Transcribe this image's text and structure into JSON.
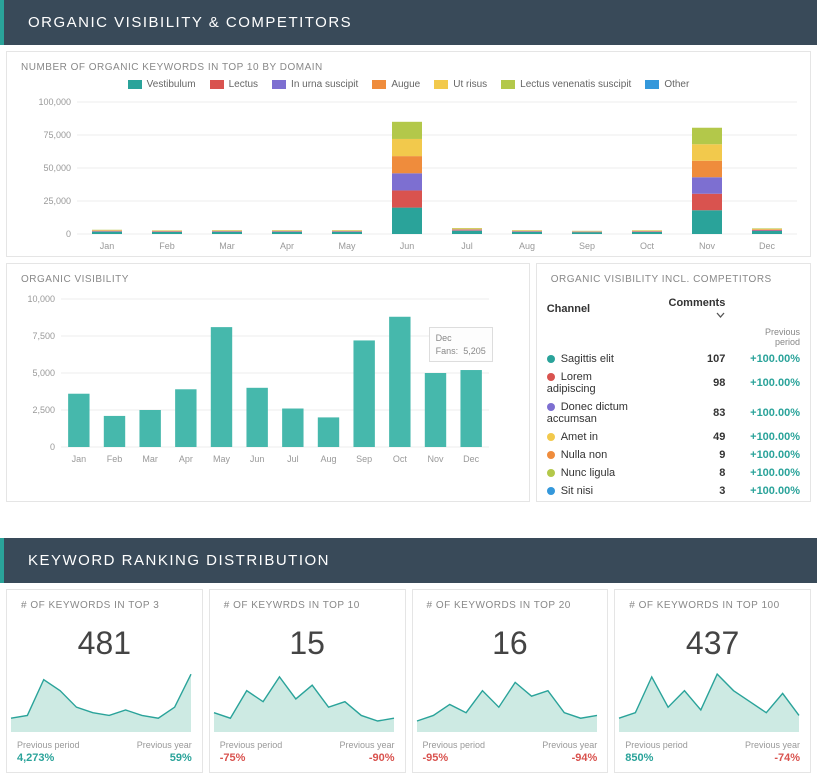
{
  "colors": {
    "header_bg": "#394a59",
    "accent": "#2aa39a",
    "grid": "#eeeeee",
    "axis_text": "#999999",
    "panel_border": "#e5e5e5",
    "positive": "#2aa39a",
    "negative": "#d9534f",
    "area_fill": "#cdeae3",
    "area_stroke": "#2aa39a"
  },
  "section1": {
    "title": "ORGANIC VISIBILITY & COMPETITORS",
    "stacked_chart": {
      "title": "NUMBER OF ORGANIC KEYWORDS IN TOP 10 BY DOMAIN",
      "type": "stacked-bar",
      "legend": [
        {
          "label": "Vestibulum",
          "color": "#2aa39a"
        },
        {
          "label": "Lectus",
          "color": "#d9534f"
        },
        {
          "label": "In urna suscipit",
          "color": "#7d6fd1"
        },
        {
          "label": "Augue",
          "color": "#ef8c3c"
        },
        {
          "label": "Ut risus",
          "color": "#f2c94c"
        },
        {
          "label": "Lectus venenatis suscipit",
          "color": "#b3c84a"
        },
        {
          "label": "Other",
          "color": "#3498db"
        }
      ],
      "categories": [
        "Jan",
        "Feb",
        "Mar",
        "Apr",
        "May",
        "Jun",
        "Jul",
        "Aug",
        "Sep",
        "Oct",
        "Nov",
        "Dec"
      ],
      "ylim": [
        0,
        100000
      ],
      "ytick_step": 25000,
      "ytick_labels": [
        "0",
        "25,000",
        "50,000",
        "75,000",
        "100,000"
      ],
      "series_stacks": {
        "Jan": [
          1800,
          300,
          300,
          300,
          300,
          200,
          0
        ],
        "Feb": [
          1600,
          250,
          250,
          250,
          250,
          200,
          0
        ],
        "Mar": [
          1700,
          250,
          250,
          250,
          250,
          250,
          0
        ],
        "Apr": [
          1700,
          250,
          250,
          250,
          250,
          250,
          0
        ],
        "May": [
          1700,
          250,
          250,
          250,
          250,
          250,
          0
        ],
        "Jun": [
          20000,
          13000,
          13000,
          13000,
          13000,
          13000,
          0
        ],
        "Jul": [
          2500,
          400,
          400,
          400,
          400,
          400,
          0
        ],
        "Aug": [
          1700,
          250,
          250,
          250,
          250,
          250,
          0
        ],
        "Sep": [
          1400,
          200,
          200,
          200,
          200,
          200,
          0
        ],
        "Oct": [
          1600,
          250,
          250,
          250,
          250,
          250,
          0
        ],
        "Nov": [
          18000,
          12500,
          12500,
          12500,
          12500,
          12500,
          0
        ],
        "Dec": [
          2300,
          400,
          400,
          400,
          400,
          400,
          0
        ]
      },
      "bar_width_ratio": 0.5
    },
    "visibility_chart": {
      "title": "ORGANIC VISIBILITY",
      "type": "bar",
      "bar_color": "#46b8ac",
      "categories": [
        "Jan",
        "Feb",
        "Mar",
        "Apr",
        "May",
        "Jun",
        "Jul",
        "Aug",
        "Sep",
        "Oct",
        "Nov",
        "Dec"
      ],
      "values": [
        3600,
        2100,
        2500,
        3900,
        8100,
        4000,
        2600,
        2000,
        7200,
        8800,
        5000,
        5200
      ],
      "ylim": [
        0,
        10000
      ],
      "ytick_step": 2500,
      "ytick_labels": [
        "0",
        "2,500",
        "5,000",
        "7,500",
        "10,000"
      ],
      "bar_width_ratio": 0.6,
      "tooltip": {
        "month": "Dec",
        "label": "Fans:",
        "value": "5,205"
      }
    },
    "competitors_table": {
      "title": "ORGANIC VISIBILITY INCL. COMPETITORS",
      "col1": "Channel",
      "col2": "Comments",
      "prev_label": "Previous period",
      "rows": [
        {
          "dot": "#2aa39a",
          "name": "Sagittis elit",
          "value": "107",
          "change": "+100.00%"
        },
        {
          "dot": "#d9534f",
          "name": "Lorem adipiscing",
          "value": "98",
          "change": "+100.00%"
        },
        {
          "dot": "#7d6fd1",
          "name": "Donec dictum accumsan",
          "value": "83",
          "change": "+100.00%"
        },
        {
          "dot": "#f2c94c",
          "name": "Amet in",
          "value": "49",
          "change": "+100.00%"
        },
        {
          "dot": "#ef8c3c",
          "name": "Nulla non",
          "value": "9",
          "change": "+100.00%"
        },
        {
          "dot": "#b3c84a",
          "name": "Nunc ligula",
          "value": "8",
          "change": "+100.00%"
        },
        {
          "dot": "#3498db",
          "name": "Sit nisi",
          "value": "3",
          "change": "+100.00%"
        }
      ]
    }
  },
  "section2": {
    "title": "KEYWORD RANKING DISTRIBUTION",
    "cards": [
      {
        "title": "# OF KEYWORDS IN TOP 3",
        "number": "481",
        "spark": [
          10,
          12,
          38,
          30,
          18,
          14,
          12,
          16,
          12,
          10,
          18,
          42
        ],
        "prev_period_label": "Previous period",
        "prev_period_value": "4,273%",
        "prev_period_sign": "pos",
        "prev_year_label": "Previous year",
        "prev_year_value": "59%",
        "prev_year_sign": "pos"
      },
      {
        "title": "# OF KEYWRDS IN TOP 10",
        "number": "15",
        "spark": [
          14,
          10,
          30,
          22,
          40,
          24,
          34,
          18,
          22,
          12,
          8,
          10
        ],
        "prev_period_label": "Previous period",
        "prev_period_value": "-75%",
        "prev_period_sign": "neg",
        "prev_year_label": "Previous year",
        "prev_year_value": "-90%",
        "prev_year_sign": "neg"
      },
      {
        "title": "# OF KEYWORDS IN TOP 20",
        "number": "16",
        "spark": [
          8,
          12,
          20,
          14,
          30,
          18,
          36,
          26,
          30,
          14,
          10,
          12
        ],
        "prev_period_label": "Previous period",
        "prev_period_value": "-95%",
        "prev_period_sign": "neg",
        "prev_year_label": "Previous year",
        "prev_year_value": "-94%",
        "prev_year_sign": "neg"
      },
      {
        "title": "# OF KEYWORDS IN TOP 100",
        "number": "437",
        "spark": [
          10,
          14,
          40,
          18,
          30,
          16,
          42,
          30,
          22,
          14,
          28,
          12
        ],
        "prev_period_label": "Previous period",
        "prev_period_value": "850%",
        "prev_period_sign": "pos",
        "prev_year_label": "Previous year",
        "prev_year_value": "-74%",
        "prev_year_sign": "neg"
      }
    ],
    "spark_ylim": [
      0,
      45
    ]
  }
}
